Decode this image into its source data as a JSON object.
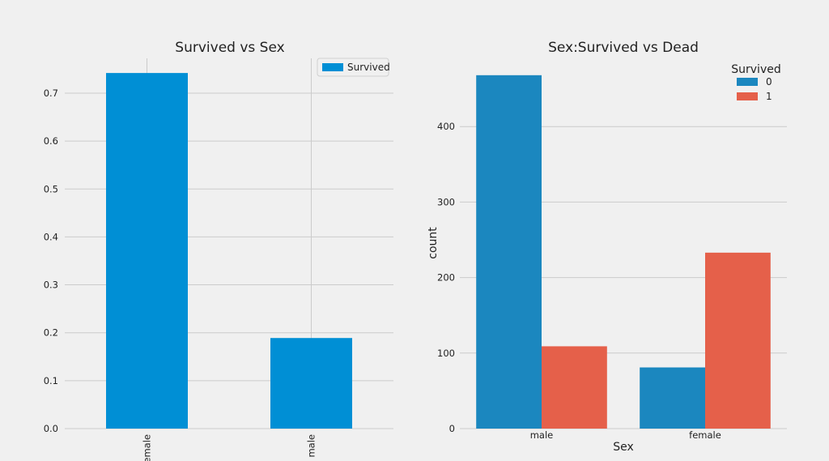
{
  "chart_data": [
    {
      "type": "bar",
      "title": "Survived vs Sex",
      "xlabel": "",
      "ylabel": "",
      "categories": [
        "female",
        "male"
      ],
      "series": [
        {
          "name": "Survived",
          "values": [
            0.742,
            0.189
          ]
        }
      ],
      "ylim": [
        0,
        0.75
      ],
      "yticks": [
        "0.0",
        "0.1",
        "0.2",
        "0.3",
        "0.4",
        "0.5",
        "0.6",
        "0.7"
      ],
      "grid": true,
      "legend_position": "top-right",
      "colors": [
        "#008fd5"
      ]
    },
    {
      "type": "bar",
      "title": "Sex:Survived vs Dead",
      "xlabel": "Sex",
      "ylabel": "count",
      "categories": [
        "male",
        "female"
      ],
      "legend_title": "Survived",
      "series": [
        {
          "name": "0",
          "values": [
            468,
            81
          ]
        },
        {
          "name": "1",
          "values": [
            109,
            233
          ]
        }
      ],
      "ylim": [
        0,
        470
      ],
      "yticks": [
        "0",
        "100",
        "200",
        "300",
        "400"
      ],
      "grid": true,
      "legend_position": "top-right",
      "colors": [
        "#1b87bf",
        "#e5604a"
      ]
    }
  ]
}
